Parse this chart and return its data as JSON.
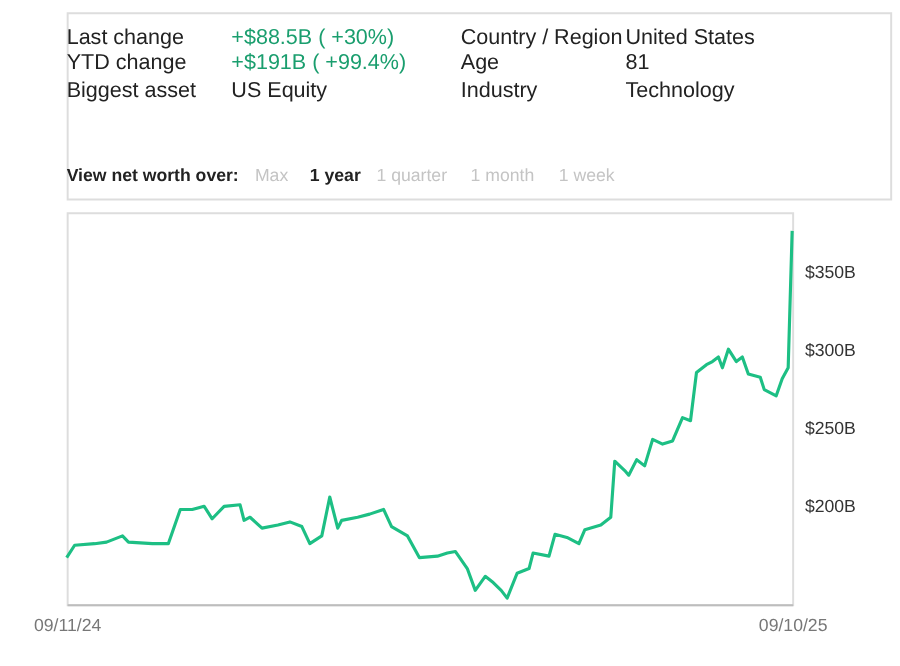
{
  "chart_data": {
    "type": "line",
    "annotations": [
      "Last change",
      "+$88.5B ( +30%)",
      "Country / Region",
      "United States",
      "YTD change",
      "+$191B ( +99.4%)",
      "Age",
      "81",
      "Biggest asset",
      "US Equity",
      "Industry",
      "Technology",
      "View net worth over:",
      "Max",
      "1 year",
      "1 quarter",
      "1 month",
      "1 week"
    ],
    "x": [
      "2024-09-11",
      "2024-09-15",
      "2024-09-25",
      "2024-10-01",
      "2024-10-09",
      "2024-10-12",
      "2024-10-24",
      "2024-11-01",
      "2024-11-07",
      "2024-11-13",
      "2024-11-19",
      "2024-11-23",
      "2024-11-29",
      "2024-12-07",
      "2024-12-09",
      "2024-12-12",
      "2024-12-18",
      "2024-12-26",
      "2025-01-01",
      "2025-01-07",
      "2025-01-11",
      "2025-01-17",
      "2025-01-21",
      "2025-01-25",
      "2025-01-27",
      "2025-02-04",
      "2025-02-10",
      "2025-02-17",
      "2025-02-21",
      "2025-03-01",
      "2025-03-07",
      "2025-03-16",
      "2025-03-21",
      "2025-03-25",
      "2025-03-31",
      "2025-04-04",
      "2025-04-09",
      "2025-04-13",
      "2025-04-17",
      "2025-04-20",
      "2025-04-25",
      "2025-05-01",
      "2025-05-03",
      "2025-05-11",
      "2025-05-14",
      "2025-05-20",
      "2025-05-26",
      "2025-05-29",
      "2025-06-06",
      "2025-06-11",
      "2025-06-13",
      "2025-06-18",
      "2025-06-20",
      "2025-06-24",
      "2025-06-28",
      "2025-07-02",
      "2025-07-07",
      "2025-07-12",
      "2025-07-17",
      "2025-07-21",
      "2025-07-24",
      "2025-07-29",
      "2025-08-01",
      "2025-08-04",
      "2025-08-06",
      "2025-08-09",
      "2025-08-13",
      "2025-08-16",
      "2025-08-19",
      "2025-08-25",
      "2025-08-27",
      "2025-09-02",
      "2025-09-05",
      "2025-09-08",
      "2025-09-10"
    ],
    "series": [
      {
        "color": "#1dbf84",
        "values": [
          166,
          174,
          175,
          176,
          180,
          176,
          175,
          175,
          197,
          197,
          199,
          191,
          199,
          200,
          190,
          192,
          185,
          187,
          189,
          186,
          175,
          180,
          205,
          185,
          190,
          192,
          194,
          197,
          186,
          180,
          166,
          167,
          169,
          170,
          159,
          145,
          154,
          150,
          145,
          140,
          156,
          159,
          169,
          167,
          181,
          179,
          175,
          184,
          187,
          192,
          228,
          222,
          219,
          229,
          225,
          242,
          239,
          241,
          256,
          254,
          285,
          290,
          292,
          295,
          288,
          300,
          292,
          295,
          284,
          282,
          274,
          270,
          281,
          288,
          376
        ]
      }
    ],
    "xlim": [
      "2024-09-11",
      "2025-09-10"
    ],
    "xticks": [
      {
        "value": "2024-09-11",
        "label": "09/11/24"
      },
      {
        "value": "2025-09-10",
        "label": "09/10/25"
      }
    ],
    "ylim": [
      136,
      388
    ],
    "yticks": [
      {
        "value": 200,
        "label": "$200B"
      },
      {
        "value": 250,
        "label": "$250B"
      },
      {
        "value": 300,
        "label": "$300B"
      },
      {
        "value": 350,
        "label": "$350B"
      }
    ],
    "grid": false,
    "marker": "none",
    "line_style": "solid"
  }
}
